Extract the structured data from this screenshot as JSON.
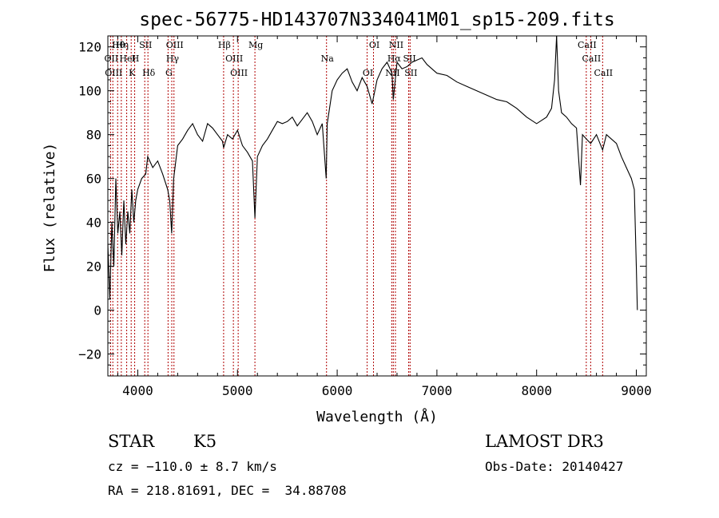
{
  "chart_data": {
    "type": "line",
    "title": "spec-56775-HD143707N334041M01_sp15-209.fits",
    "xlabel": "Wavelength (Å)",
    "ylabel": "Flux (relative)",
    "xlim": [
      3700,
      9100
    ],
    "ylim": [
      -30,
      125
    ],
    "xticks": [
      4000,
      5000,
      6000,
      7000,
      8000,
      9000
    ],
    "xtick_labels": [
      "4000",
      "5000",
      "6000",
      "7000",
      "8000",
      "9000"
    ],
    "yticks": [
      -20,
      0,
      20,
      40,
      60,
      80,
      100,
      120
    ],
    "ytick_labels": [
      "−20",
      "0",
      "20",
      "40",
      "60",
      "80",
      "100",
      "120"
    ],
    "grid": false,
    "series": [
      {
        "name": "spectrum",
        "x": [
          3700,
          3720,
          3740,
          3760,
          3780,
          3800,
          3820,
          3840,
          3860,
          3880,
          3900,
          3920,
          3940,
          3960,
          3980,
          4000,
          4040,
          4080,
          4100,
          4150,
          4200,
          4250,
          4300,
          4320,
          4340,
          4360,
          4400,
          4450,
          4500,
          4550,
          4600,
          4650,
          4700,
          4750,
          4800,
          4850,
          4861,
          4900,
          4950,
          5000,
          5050,
          5100,
          5150,
          5175,
          5200,
          5250,
          5300,
          5350,
          5400,
          5450,
          5500,
          5550,
          5600,
          5650,
          5700,
          5750,
          5800,
          5850,
          5890,
          5900,
          5950,
          6000,
          6050,
          6100,
          6150,
          6200,
          6250,
          6300,
          6350,
          6400,
          6450,
          6500,
          6550,
          6563,
          6600,
          6650,
          6700,
          6750,
          6800,
          6850,
          6900,
          6950,
          7000,
          7100,
          7200,
          7300,
          7400,
          7500,
          7600,
          7700,
          7800,
          7900,
          8000,
          8100,
          8150,
          8180,
          8200,
          8220,
          8250,
          8300,
          8350,
          8400,
          8440,
          8460,
          8500,
          8542,
          8600,
          8662,
          8700,
          8750,
          8800,
          8850,
          8900,
          8950,
          8980,
          9000,
          9010
        ],
        "y": [
          30,
          5,
          40,
          20,
          60,
          35,
          45,
          25,
          50,
          30,
          45,
          35,
          55,
          40,
          50,
          55,
          60,
          62,
          70,
          65,
          68,
          62,
          55,
          50,
          35,
          60,
          75,
          78,
          82,
          85,
          80,
          77,
          85,
          83,
          80,
          77,
          74,
          80,
          78,
          82,
          75,
          72,
          68,
          42,
          70,
          75,
          78,
          82,
          86,
          85,
          86,
          88,
          84,
          87,
          90,
          86,
          80,
          85,
          60,
          85,
          100,
          105,
          108,
          110,
          104,
          100,
          106,
          102,
          94,
          105,
          110,
          113,
          108,
          96,
          113,
          110,
          111,
          113,
          114,
          115,
          112,
          110,
          108,
          107,
          104,
          102,
          100,
          98,
          96,
          95,
          92,
          88,
          85,
          88,
          92,
          105,
          125,
          100,
          90,
          88,
          85,
          83,
          57,
          80,
          78,
          76,
          80,
          73,
          80,
          78,
          76,
          70,
          65,
          60,
          55,
          20,
          0
        ]
      }
    ],
    "lines": [
      {
        "label": "Hθ",
        "x": 3798
      },
      {
        "label": "OII",
        "x": 3727
      },
      {
        "label": "OIII",
        "x": 3750
      },
      {
        "label": "Hη",
        "x": 3835
      },
      {
        "label": "HeI",
        "x": 3889
      },
      {
        "label": "K",
        "x": 3934
      },
      {
        "label": "SII",
        "x": 4070
      },
      {
        "label": "H",
        "x": 3969
      },
      {
        "label": "Hδ",
        "x": 4102
      },
      {
        "label": "OIII",
        "x": 4363
      },
      {
        "label": "Hγ",
        "x": 4341
      },
      {
        "label": "G",
        "x": 4304
      },
      {
        "label": "Hβ",
        "x": 4861
      },
      {
        "label": "OIII",
        "x": 4959
      },
      {
        "label": "OIII",
        "x": 5007
      },
      {
        "label": "Mg",
        "x": 5175
      },
      {
        "label": "Na",
        "x": 5893
      },
      {
        "label": "OI",
        "x": 6300
      },
      {
        "label": "OI",
        "x": 6364
      },
      {
        "label": "Hα",
        "x": 6563
      },
      {
        "label": "NII",
        "x": 6548
      },
      {
        "label": "NII",
        "x": 6584
      },
      {
        "label": "SII",
        "x": 6717
      },
      {
        "label": "SII",
        "x": 6731
      },
      {
        "label": "CaII",
        "x": 8498
      },
      {
        "label": "CaII",
        "x": 8542
      },
      {
        "label": "CaII",
        "x": 8662
      }
    ]
  },
  "info": {
    "object_class": "STAR",
    "subclass": "K5",
    "survey": "LAMOST DR3",
    "redshift": "cz = −110.0 ± 8.7 km/s",
    "obs_date": "Obs-Date: 20140427",
    "coords": "RA = 218.81691, DEC =  34.88708"
  }
}
